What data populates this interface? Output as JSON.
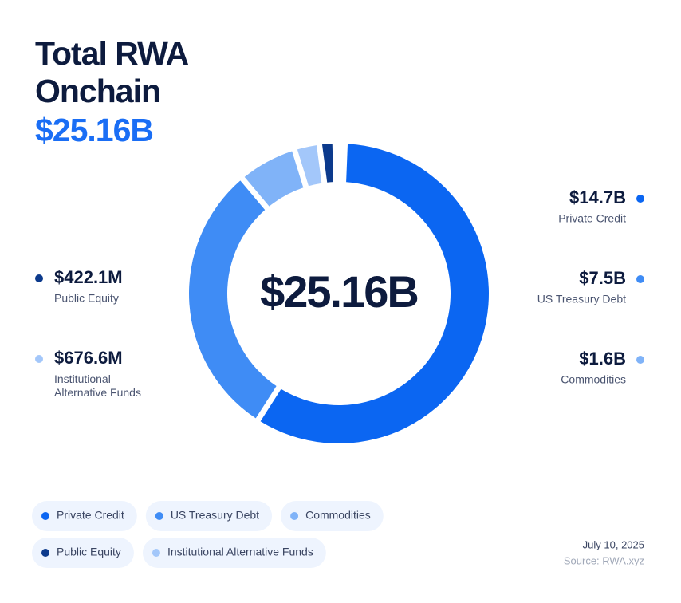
{
  "chart_data": {
    "type": "donut",
    "title": "Total RWA Onchain",
    "total": 25.16,
    "total_label": "$25.16B",
    "categories": [
      "Private Credit",
      "US Treasury Debt",
      "Commodities",
      "Public Equity",
      "Institutional Alternative Funds"
    ],
    "values": [
      14.7,
      7.5,
      1.6,
      0.4221,
      0.6766
    ],
    "value_labels": [
      "$14.7B",
      "$7.5B",
      "$1.6B",
      "$422.1M",
      "$676.6M"
    ],
    "colors": [
      "#0b66f2",
      "#3f8cf5",
      "#80b3f8",
      "#0c3a8c",
      "#a3c7fa"
    ],
    "date": "July 10, 2025",
    "source": "Source: RWA.xyz"
  }
}
